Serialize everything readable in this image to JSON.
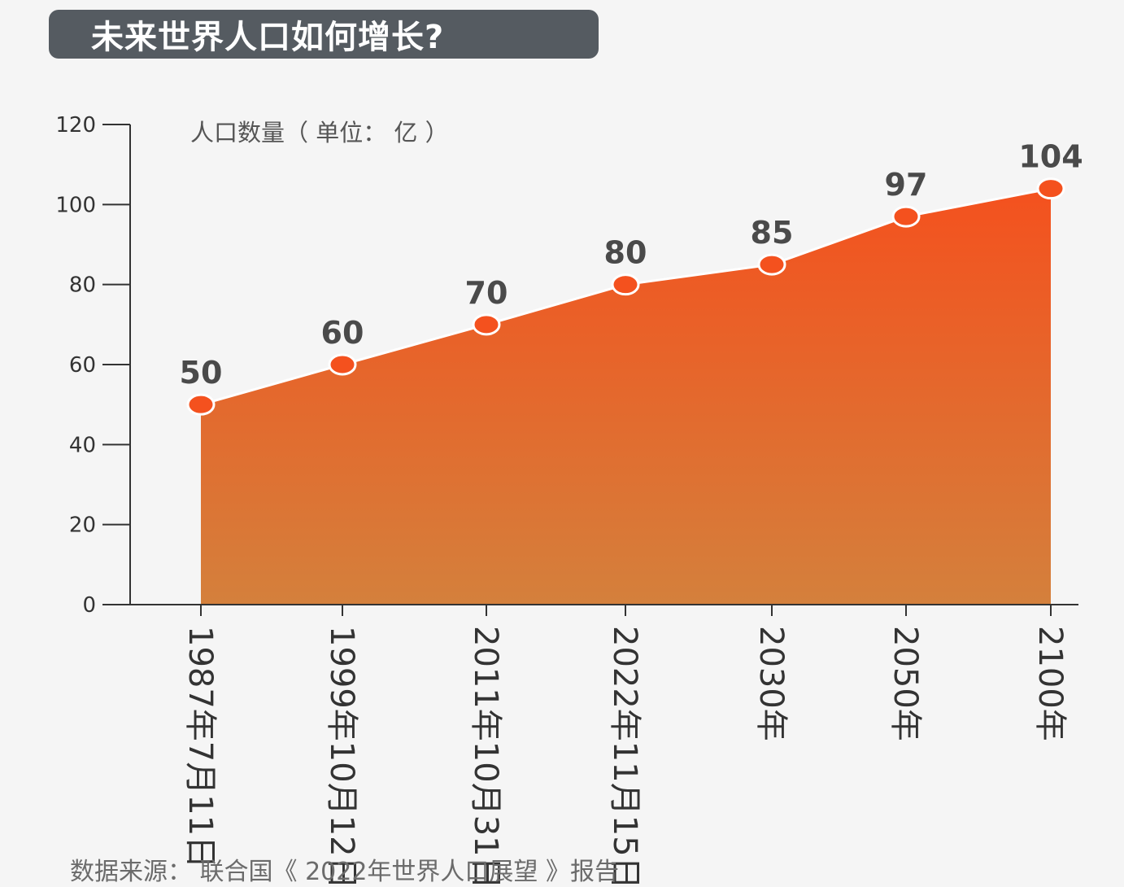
{
  "title": "未来世界人口如何增长?",
  "source_note": "数据来源： 联合国《 2022年世界人口展望 》报告",
  "colors": {
    "area_top": "#f4511e",
    "area_bottom": "#d4803c",
    "marker": "#f4511e",
    "marker_outline": "#ffffff",
    "axis": "#333333",
    "banner": "#555b61"
  },
  "chart_data": {
    "type": "area",
    "unit_label": "人口数量（ 单位： 亿 ）",
    "categories": [
      "1987年7月11日",
      "1999年10月12日",
      "2011年10月31日",
      "2022年11月15日",
      "2030年",
      "2050年",
      "2100年"
    ],
    "values": [
      50,
      60,
      70,
      80,
      85,
      97,
      104
    ],
    "data_labels": [
      "50",
      "60",
      "70",
      "80",
      "85",
      "97",
      "104"
    ],
    "yticks": [
      "0",
      "20",
      "40",
      "60",
      "80",
      "100",
      "120"
    ],
    "ylim": [
      0,
      120
    ],
    "grid": false,
    "legend": "none"
  }
}
